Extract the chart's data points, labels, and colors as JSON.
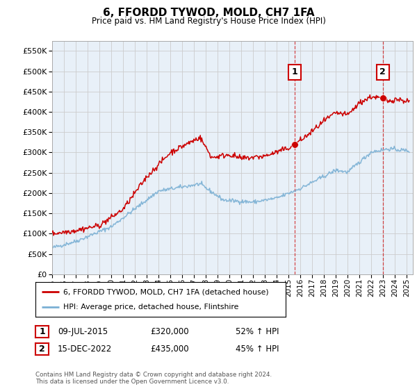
{
  "title": "6, FFORDD TYWOD, MOLD, CH7 1FA",
  "subtitle": "Price paid vs. HM Land Registry's House Price Index (HPI)",
  "ylim": [
    0,
    575000
  ],
  "yticks": [
    0,
    50000,
    100000,
    150000,
    200000,
    250000,
    300000,
    350000,
    400000,
    450000,
    500000,
    550000
  ],
  "xlim_start": 1995.0,
  "xlim_end": 2025.5,
  "sale1_date": 2015.52,
  "sale1_price": 320000,
  "sale1_label": "1",
  "sale1_pct": "52% ↑ HPI",
  "sale1_date_str": "09-JUL-2015",
  "sale2_date": 2022.96,
  "sale2_price": 435000,
  "sale2_label": "2",
  "sale2_pct": "45% ↑ HPI",
  "sale2_date_str": "15-DEC-2022",
  "property_color": "#cc0000",
  "hpi_color": "#7ab0d4",
  "grid_color": "#cccccc",
  "chart_bg": "#e8f0f8",
  "background_color": "#ffffff",
  "legend_property": "6, FFORDD TYWOD, MOLD, CH7 1FA (detached house)",
  "legend_hpi": "HPI: Average price, detached house, Flintshire",
  "footnote": "Contains HM Land Registry data © Crown copyright and database right 2024.\nThis data is licensed under the Open Government Licence v3.0."
}
